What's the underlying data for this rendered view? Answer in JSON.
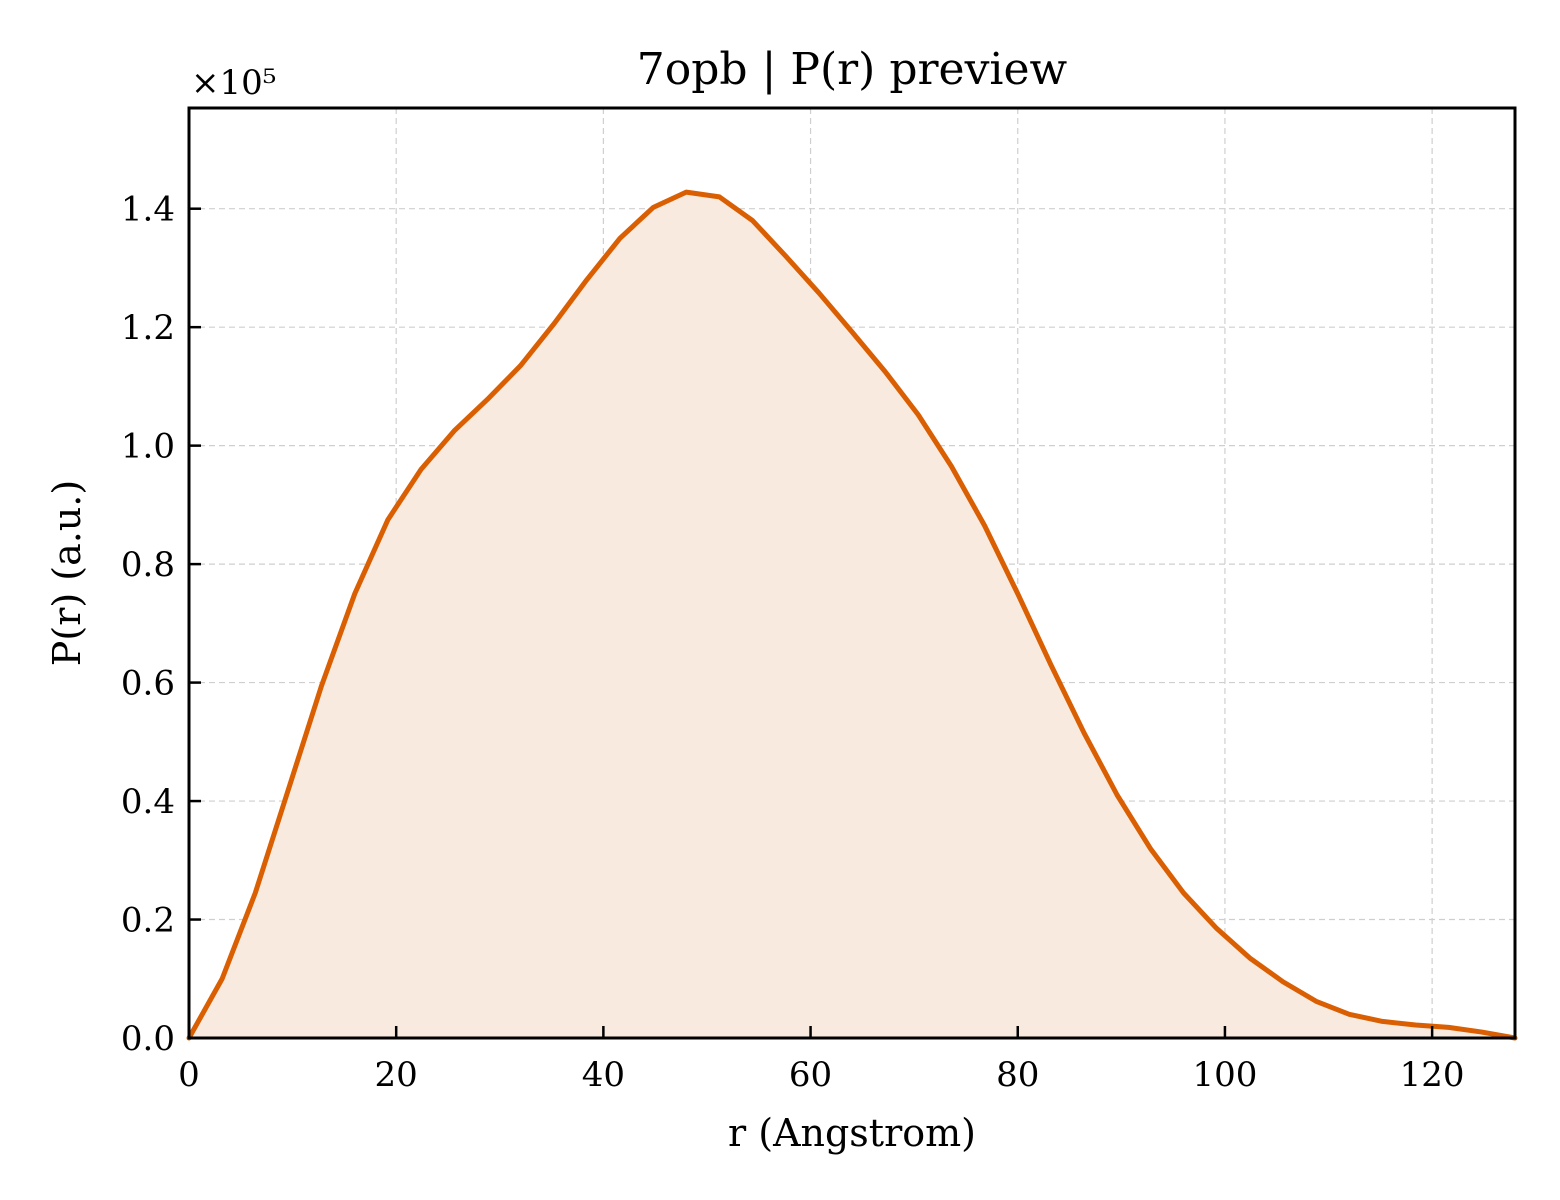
{
  "chart_data": {
    "type": "area",
    "title": "7opb | P(r) preview",
    "xlabel": "r (Angstrom)",
    "ylabel": "P(r) (a.u.)",
    "y_offset_label": "×10⁵",
    "y_scale": 100000,
    "xlim": [
      0,
      128
    ],
    "ylim": [
      0,
      1.57
    ],
    "xticks": [
      0,
      20,
      40,
      60,
      80,
      100,
      120
    ],
    "yticks": [
      0.0,
      0.2,
      0.4,
      0.6,
      0.8,
      1.0,
      1.2,
      1.4
    ],
    "xtick_labels": [
      "0",
      "20",
      "40",
      "60",
      "80",
      "100",
      "120"
    ],
    "ytick_labels": [
      "0.0",
      "0.2",
      "0.4",
      "0.6",
      "0.8",
      "1.0",
      "1.2",
      "1.4"
    ],
    "grid": true,
    "line_color": "#d95f02",
    "fill_color": "#f9eadf",
    "series": [
      {
        "x": [
          0,
          3.2,
          6.4,
          9.6,
          12.8,
          16.0,
          19.2,
          22.4,
          25.6,
          28.8,
          32.0,
          35.2,
          38.4,
          41.6,
          44.8,
          48.0,
          51.2,
          54.4,
          57.6,
          60.8,
          64.0,
          67.2,
          70.4,
          73.6,
          76.8,
          80.0,
          83.2,
          86.4,
          89.6,
          92.8,
          96.0,
          99.2,
          102.4,
          105.6,
          108.8,
          112.0,
          115.2,
          118.4,
          121.6,
          124.8,
          128.0
        ],
        "y": [
          0.0,
          0.1,
          0.245,
          0.42,
          0.595,
          0.75,
          0.875,
          0.96,
          1.025,
          1.078,
          1.135,
          1.205,
          1.28,
          1.35,
          1.402,
          1.428,
          1.42,
          1.38,
          1.32,
          1.258,
          1.192,
          1.125,
          1.052,
          0.965,
          0.865,
          0.75,
          0.63,
          0.515,
          0.41,
          0.32,
          0.245,
          0.185,
          0.135,
          0.095,
          0.062,
          0.04,
          0.028,
          0.022,
          0.018,
          0.01,
          0.0
        ]
      }
    ]
  }
}
